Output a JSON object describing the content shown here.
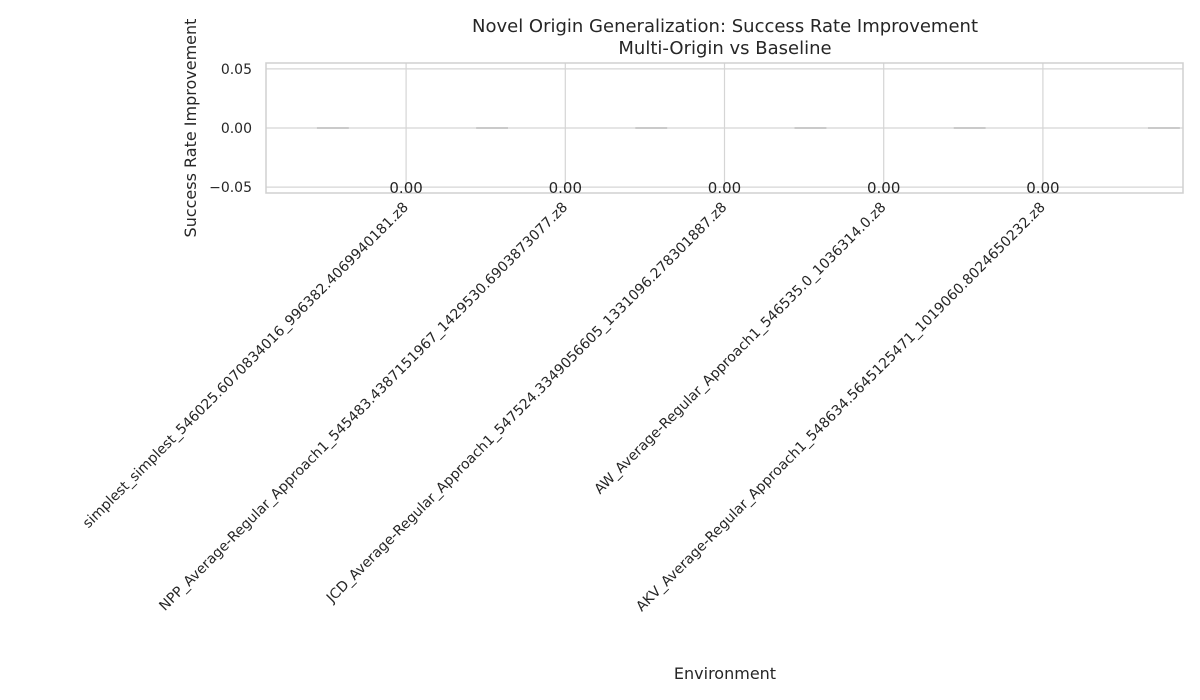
{
  "chart_data": {
    "type": "bar",
    "title": "Novel Origin Generalization: Success Rate Improvement",
    "subtitle": "Multi-Origin vs Baseline",
    "xlabel": "Environment",
    "ylabel": "Success Rate Improvement",
    "categories": [
      "simplest_simplest_546025.6070834016_996382.4069940181.z8",
      "NPP_Average-Regular_Approach1_545483.4387151967_1429530.6903873077.z8",
      "JCD_Average-Regular_Approach1_547524.3349056605_1331096.278301887.z8",
      "AW_Average-Regular_Approach1_546535.0_1036314.0.z8",
      "AKV_Average-Regular_Approach1_548634.5645125471_1019060.8024650232.z8"
    ],
    "values": [
      0.0,
      0.0,
      0.0,
      0.0,
      0.0
    ],
    "data_labels": [
      "0.00",
      "0.00",
      "0.00",
      "0.00",
      "0.00"
    ],
    "ylim": [
      -0.055,
      0.055
    ],
    "yticks": [
      -0.05,
      0.0,
      0.05
    ],
    "ytick_labels": [
      "−0.05",
      "0.00",
      "0.05"
    ],
    "grid": true,
    "bar_color": "#9e9e9e"
  }
}
